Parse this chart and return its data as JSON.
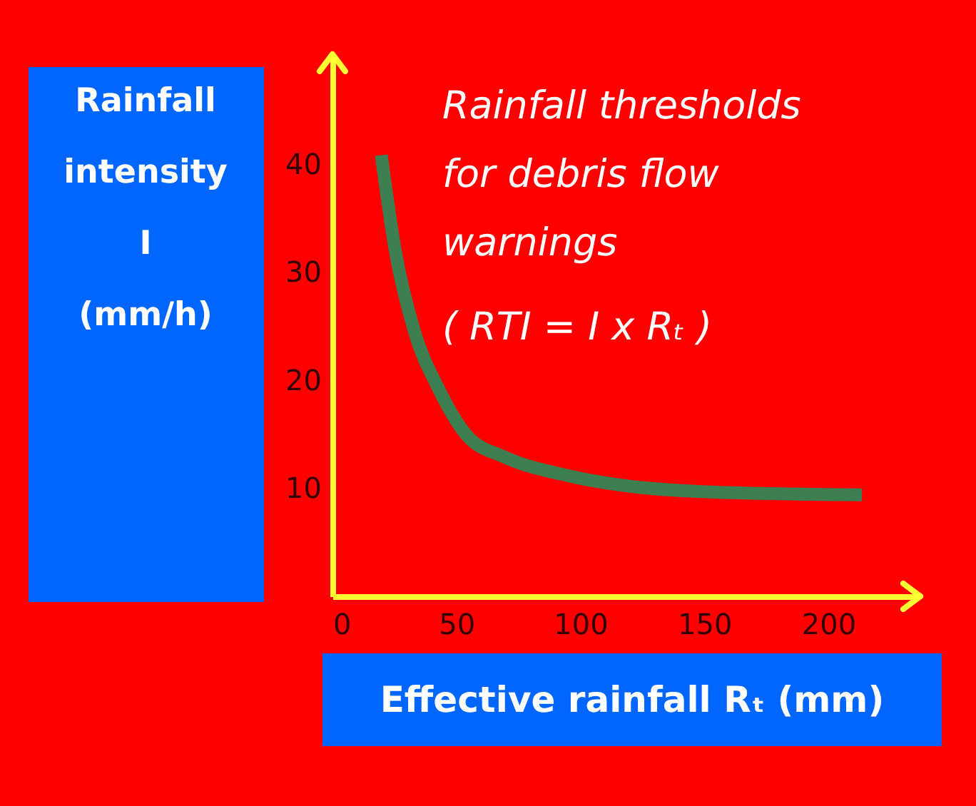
{
  "chart_data": {
    "type": "line",
    "title": "Rainfall thresholds\nfor debris flow\nwarnings",
    "subtitle": "( RTI = I x Rₜ )",
    "xlabel": "Effective rainfall  Rₜ (mm)",
    "ylabel": "Rainfall\nintensity\n\nI\n(mm/h)",
    "x": [
      19.7,
      25.3,
      33,
      42.7,
      54.3,
      69.5,
      94.8,
      123.8,
      162,
      213.6
    ],
    "series": [
      {
        "color": "#3d7f50",
        "values": [
          40.9,
          32.1,
          24.6,
          19.3,
          14.9,
          12.9,
          11.2,
          10.1,
          9.6,
          9.4
        ]
      }
    ],
    "xlim": [
      0,
      236
    ],
    "ylim": [
      0,
      50
    ],
    "xticks": [
      0,
      50,
      100,
      150,
      200
    ],
    "yticks": [
      10,
      20,
      30,
      40
    ]
  }
}
